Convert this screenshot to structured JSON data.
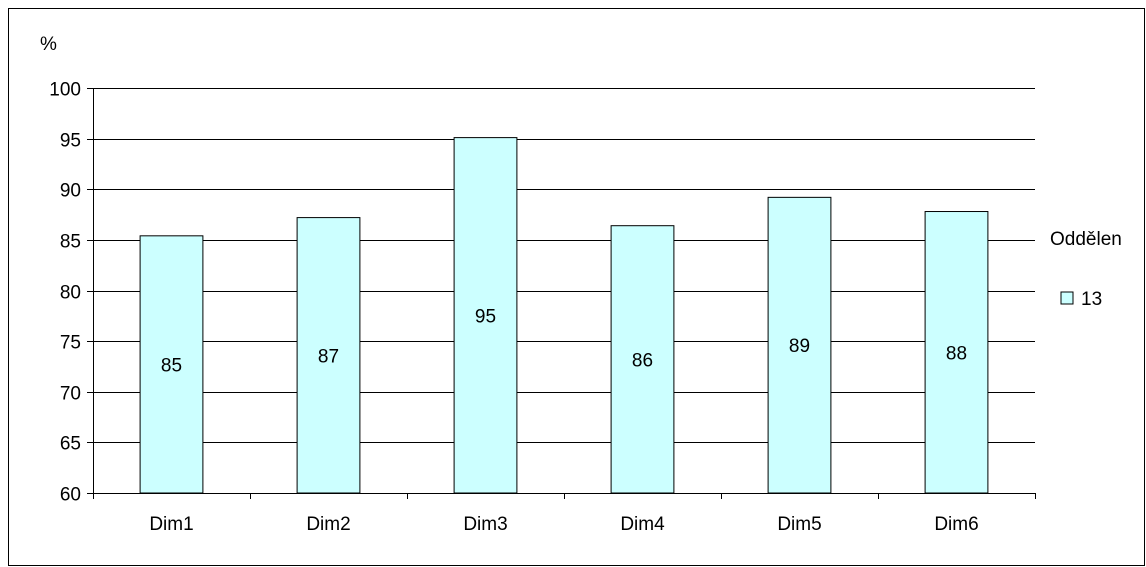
{
  "chart_data": {
    "type": "bar",
    "title": "",
    "xlabel": "",
    "ylabel": "%",
    "categories": [
      "Dim1",
      "Dim2",
      "Dim3",
      "Dim4",
      "Dim5",
      "Dim6"
    ],
    "series": [
      {
        "name": "13",
        "values": [
          85.4,
          87.2,
          95.1,
          86.4,
          89.2,
          87.8
        ],
        "data_labels": [
          "85",
          "87",
          "95",
          "86",
          "89",
          "88"
        ]
      }
    ],
    "ylim": [
      60,
      100
    ],
    "yticks": [
      60,
      65,
      70,
      75,
      80,
      85,
      90,
      95,
      100
    ],
    "grid": true,
    "legend_title": "Oddělen",
    "legend_position": "right",
    "colors": {
      "bar_fill": "#CCFFFF",
      "bar_stroke": "#000000",
      "grid": "#000000",
      "background": "#FFFFFF"
    }
  }
}
